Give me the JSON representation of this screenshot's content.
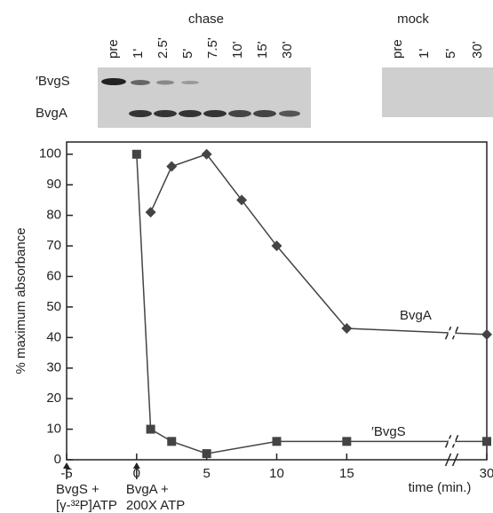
{
  "gel": {
    "chase_label": "chase",
    "chase_lanes": [
      "pre",
      "1'",
      "2.5'",
      "5'",
      "7.5'",
      "10'",
      "15'",
      "30'"
    ],
    "mock_label": "mock",
    "mock_lanes": [
      "pre",
      "1'",
      "5'",
      "30'"
    ],
    "band_labels": [
      "′BvgS",
      "BvgA"
    ]
  },
  "chart_data": {
    "type": "line",
    "x_label": "time (min.)",
    "y_label": "% maximum absorbance",
    "xlim": [
      -5,
      30
    ],
    "xticks": [
      -5,
      0,
      5,
      10,
      15,
      30
    ],
    "x_break": [
      22.5,
      27.5
    ],
    "ylim": [
      0,
      104
    ],
    "yticks": [
      0,
      10,
      20,
      30,
      40,
      50,
      60,
      70,
      80,
      90,
      100
    ],
    "series": [
      {
        "name": "BvgA",
        "color": "#444444",
        "marker": "diamond",
        "x": [
          1,
          2.5,
          5,
          7.5,
          10,
          15,
          30
        ],
        "values": [
          81,
          96,
          100,
          85,
          70,
          43,
          41
        ]
      },
      {
        "name": "′BvgS",
        "color": "#444444",
        "marker": "square",
        "x": [
          0,
          1,
          2.5,
          5,
          10,
          15,
          30
        ],
        "values": [
          100,
          10,
          6,
          2,
          6,
          6,
          6
        ]
      }
    ],
    "annotations": [
      {
        "x": -5,
        "lines": [
          "BvgS +",
          "[γ-³²P]ATP"
        ]
      },
      {
        "x": 0,
        "lines": [
          "BvgA +",
          "200X ATP"
        ]
      }
    ]
  }
}
